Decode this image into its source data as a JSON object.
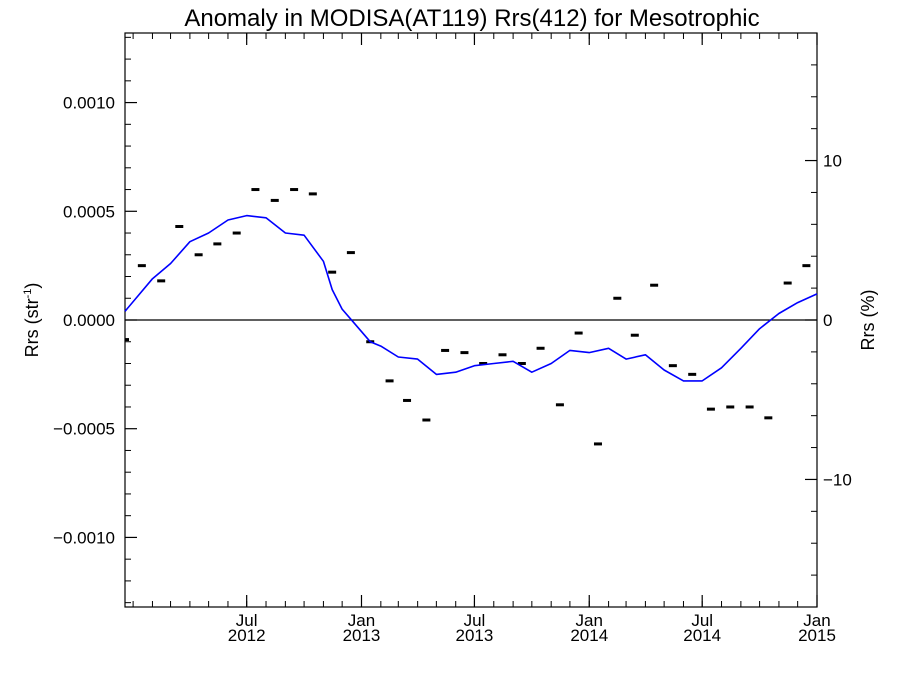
{
  "chart_data": {
    "type": "scatter",
    "title": "Anomaly in MODISA(AT119) Rrs(412) for Mesotrophic",
    "ylabel_left": "Rrs (str",
    "ylabel_left_sup": "-1",
    "ylabel_left_close": ")",
    "ylabel_right": "Rrs (%)",
    "xlabel": "",
    "xlim": [
      "2011-12-19",
      "2015-01-01"
    ],
    "ylim_left": [
      -0.00132,
      0.00132
    ],
    "ylim_right": [
      -18,
      18
    ],
    "grid": false,
    "legend": "none",
    "zero_line": true,
    "x_ticks": [
      {
        "date": "2012-07-01",
        "month": "Jul",
        "year": "2012"
      },
      {
        "date": "2013-01-01",
        "month": "Jan",
        "year": "2013"
      },
      {
        "date": "2013-07-01",
        "month": "Jul",
        "year": "2013"
      },
      {
        "date": "2014-01-01",
        "month": "Jan",
        "year": "2014"
      },
      {
        "date": "2014-07-01",
        "month": "Jul",
        "year": "2014"
      },
      {
        "date": "2015-01-01",
        "month": "Jan",
        "year": "2015"
      }
    ],
    "y_ticks_left": [
      {
        "value": 0.001,
        "label": "0.0010"
      },
      {
        "value": 0.0005,
        "label": "0.0005"
      },
      {
        "value": 0.0,
        "label": "0.0000"
      },
      {
        "value": -0.0005,
        "label": "−0.0005"
      },
      {
        "value": -0.001,
        "label": "−0.0010"
      }
    ],
    "y_ticks_right": [
      {
        "value": 10,
        "label": "10"
      },
      {
        "value": 0,
        "label": "0"
      },
      {
        "value": -10,
        "label": "−10"
      }
    ],
    "series": [
      {
        "kind": "monthly anomaly",
        "marker": "dash",
        "color": "#000000",
        "points": [
          {
            "x": "2011-12-19",
            "y": -9e-05
          },
          {
            "x": "2012-01-15",
            "y": 0.00025
          },
          {
            "x": "2012-02-15",
            "y": 0.00018
          },
          {
            "x": "2012-03-15",
            "y": 0.00043
          },
          {
            "x": "2012-04-15",
            "y": 0.0003
          },
          {
            "x": "2012-05-15",
            "y": 0.00035
          },
          {
            "x": "2012-06-15",
            "y": 0.0004
          },
          {
            "x": "2012-07-15",
            "y": 0.0006
          },
          {
            "x": "2012-08-15",
            "y": 0.00055
          },
          {
            "x": "2012-09-15",
            "y": 0.0006
          },
          {
            "x": "2012-10-15",
            "y": 0.00058
          },
          {
            "x": "2012-11-15",
            "y": 0.00022
          },
          {
            "x": "2012-12-15",
            "y": 0.00031
          },
          {
            "x": "2013-01-15",
            "y": -0.0001
          },
          {
            "x": "2013-02-15",
            "y": -0.00028
          },
          {
            "x": "2013-03-15",
            "y": -0.00037
          },
          {
            "x": "2013-04-15",
            "y": -0.00046
          },
          {
            "x": "2013-05-15",
            "y": -0.00014
          },
          {
            "x": "2013-06-15",
            "y": -0.00015
          },
          {
            "x": "2013-07-15",
            "y": -0.0002
          },
          {
            "x": "2013-08-15",
            "y": -0.00016
          },
          {
            "x": "2013-09-15",
            "y": -0.0002
          },
          {
            "x": "2013-10-15",
            "y": -0.00013
          },
          {
            "x": "2013-11-15",
            "y": -0.00039
          },
          {
            "x": "2013-12-15",
            "y": -6e-05
          },
          {
            "x": "2014-01-15",
            "y": -0.00057
          },
          {
            "x": "2014-02-15",
            "y": 0.0001
          },
          {
            "x": "2014-03-15",
            "y": -7e-05
          },
          {
            "x": "2014-04-15",
            "y": 0.00016
          },
          {
            "x": "2014-05-15",
            "y": -0.00021
          },
          {
            "x": "2014-06-15",
            "y": -0.00025
          },
          {
            "x": "2014-07-15",
            "y": -0.00041
          },
          {
            "x": "2014-08-15",
            "y": -0.0004
          },
          {
            "x": "2014-09-15",
            "y": -0.0004
          },
          {
            "x": "2014-10-15",
            "y": -0.00045
          },
          {
            "x": "2014-11-15",
            "y": 0.00017
          },
          {
            "x": "2014-12-15",
            "y": 0.00025
          }
        ]
      },
      {
        "kind": "running mean",
        "marker": "line",
        "color": "#0000ff",
        "points": [
          {
            "x": "2011-12-19",
            "y": 4e-05
          },
          {
            "x": "2012-02-01",
            "y": 0.00019
          },
          {
            "x": "2012-03-01",
            "y": 0.00026
          },
          {
            "x": "2012-04-01",
            "y": 0.00036
          },
          {
            "x": "2012-05-01",
            "y": 0.0004
          },
          {
            "x": "2012-06-01",
            "y": 0.00046
          },
          {
            "x": "2012-07-01",
            "y": 0.00048
          },
          {
            "x": "2012-08-01",
            "y": 0.00047
          },
          {
            "x": "2012-09-01",
            "y": 0.0004
          },
          {
            "x": "2012-10-01",
            "y": 0.00039
          },
          {
            "x": "2012-11-01",
            "y": 0.00027
          },
          {
            "x": "2012-11-15",
            "y": 0.00014
          },
          {
            "x": "2012-12-01",
            "y": 5e-05
          },
          {
            "x": "2012-12-19",
            "y": -1e-05
          },
          {
            "x": "2013-01-15",
            "y": -0.0001
          },
          {
            "x": "2013-02-01",
            "y": -0.00012
          },
          {
            "x": "2013-03-01",
            "y": -0.00017
          },
          {
            "x": "2013-04-01",
            "y": -0.00018
          },
          {
            "x": "2013-05-01",
            "y": -0.00025
          },
          {
            "x": "2013-06-01",
            "y": -0.00024
          },
          {
            "x": "2013-07-01",
            "y": -0.00021
          },
          {
            "x": "2013-08-01",
            "y": -0.0002
          },
          {
            "x": "2013-09-01",
            "y": -0.00019
          },
          {
            "x": "2013-10-01",
            "y": -0.00024
          },
          {
            "x": "2013-11-01",
            "y": -0.0002
          },
          {
            "x": "2013-12-01",
            "y": -0.00014
          },
          {
            "x": "2014-01-01",
            "y": -0.00015
          },
          {
            "x": "2014-02-01",
            "y": -0.00013
          },
          {
            "x": "2014-03-01",
            "y": -0.00018
          },
          {
            "x": "2014-04-01",
            "y": -0.00016
          },
          {
            "x": "2014-05-01",
            "y": -0.00023
          },
          {
            "x": "2014-06-01",
            "y": -0.00028
          },
          {
            "x": "2014-07-01",
            "y": -0.00028
          },
          {
            "x": "2014-08-01",
            "y": -0.00022
          },
          {
            "x": "2014-09-01",
            "y": -0.00013
          },
          {
            "x": "2014-10-01",
            "y": -4e-05
          },
          {
            "x": "2014-11-01",
            "y": 3e-05
          },
          {
            "x": "2014-12-01",
            "y": 8e-05
          },
          {
            "x": "2015-01-01",
            "y": 0.00012
          }
        ]
      }
    ]
  }
}
